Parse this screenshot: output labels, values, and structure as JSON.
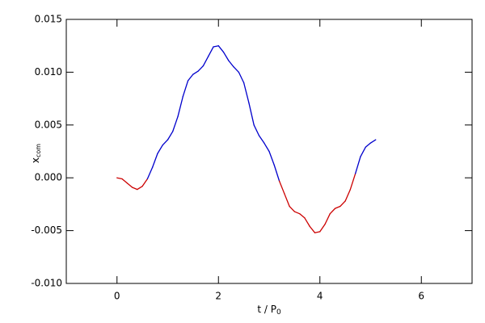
{
  "chart_data": {
    "type": "line",
    "xlabel": "t / P",
    "xlabel_sub": "0",
    "ylabel": "x",
    "ylabel_sub": "com",
    "xlim": [
      -1,
      7
    ],
    "xticks": [
      0,
      2,
      4,
      6
    ],
    "ylim": [
      -0.01,
      0.015
    ],
    "yticks": [
      {
        "value": -0.01,
        "label": "-0.010"
      },
      -0.005,
      {
        "value": 0,
        "label": "0.000"
      },
      0.005,
      {
        "value": 0.01,
        "label": "0.010"
      },
      0.015
    ],
    "color": "#0000cc",
    "negative_color": "#cc0000",
    "x": [
      0,
      0.1,
      0.2,
      0.3,
      0.4,
      0.5,
      0.6,
      0.7,
      0.8,
      0.9,
      1.0,
      1.1,
      1.2,
      1.3,
      1.4,
      1.5,
      1.6,
      1.7,
      1.8,
      1.9,
      2.0,
      2.1,
      2.2,
      2.3,
      2.4,
      2.5,
      2.6,
      2.7,
      2.8,
      2.9,
      3.0,
      3.1,
      3.2,
      3.3,
      3.4,
      3.5,
      3.6,
      3.7,
      3.8,
      3.9,
      4.0,
      4.1,
      4.2,
      4.3,
      4.4,
      4.5,
      4.6,
      4.7,
      4.8,
      4.9,
      5.0,
      5.1
    ],
    "values": [
      0,
      -0.0001,
      -0.0005,
      -0.0009,
      -0.0011,
      -0.0008,
      -0.0001,
      0.001,
      0.0023,
      0.0031,
      0.0036,
      0.0044,
      0.0058,
      0.0077,
      0.0092,
      0.0098,
      0.0101,
      0.0106,
      0.0115,
      0.0124,
      0.0125,
      0.0119,
      0.0111,
      0.0105,
      0.01,
      0.009,
      0.0071,
      0.005,
      0.004,
      0.0033,
      0.0025,
      0.0012,
      -0.0003,
      -0.0015,
      -0.0027,
      -0.0032,
      -0.0034,
      -0.0038,
      -0.0046,
      -0.0052,
      -0.0051,
      -0.0044,
      -0.0034,
      -0.0029,
      -0.0027,
      -0.0022,
      -0.0011,
      0.0004,
      0.002,
      0.0029,
      0.0033,
      0.0036
    ]
  }
}
